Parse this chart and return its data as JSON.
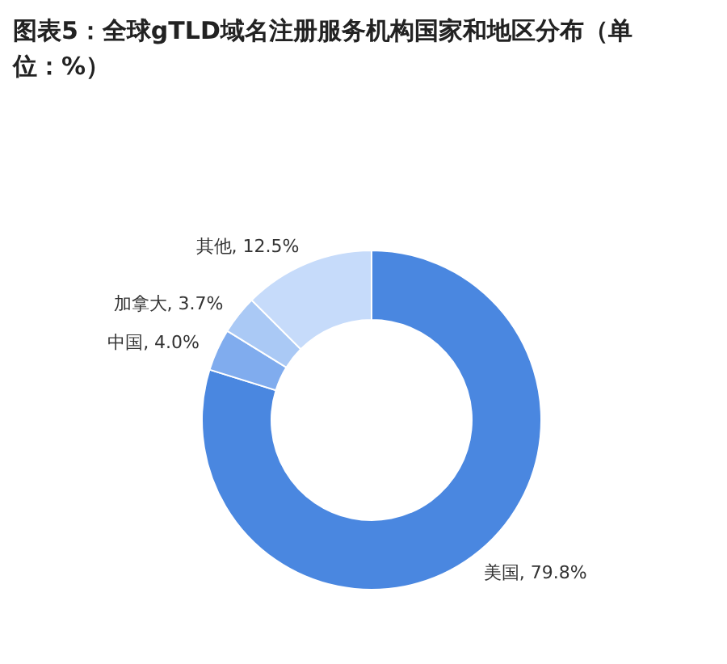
{
  "chart_data": {
    "type": "donut",
    "title": "图表5：全球gTLD域名注册服务机构国家和地区分布（单位：%）",
    "categories": [
      "美国",
      "中国",
      "加拿大",
      "其他"
    ],
    "values": [
      79.8,
      4.0,
      3.7,
      12.5
    ],
    "value_labels": [
      "79.8%",
      "4.0%",
      "3.7%",
      "12.5%"
    ],
    "colors": [
      "#4a87e0",
      "#80acee",
      "#aac9f5",
      "#c6dbfa"
    ]
  }
}
